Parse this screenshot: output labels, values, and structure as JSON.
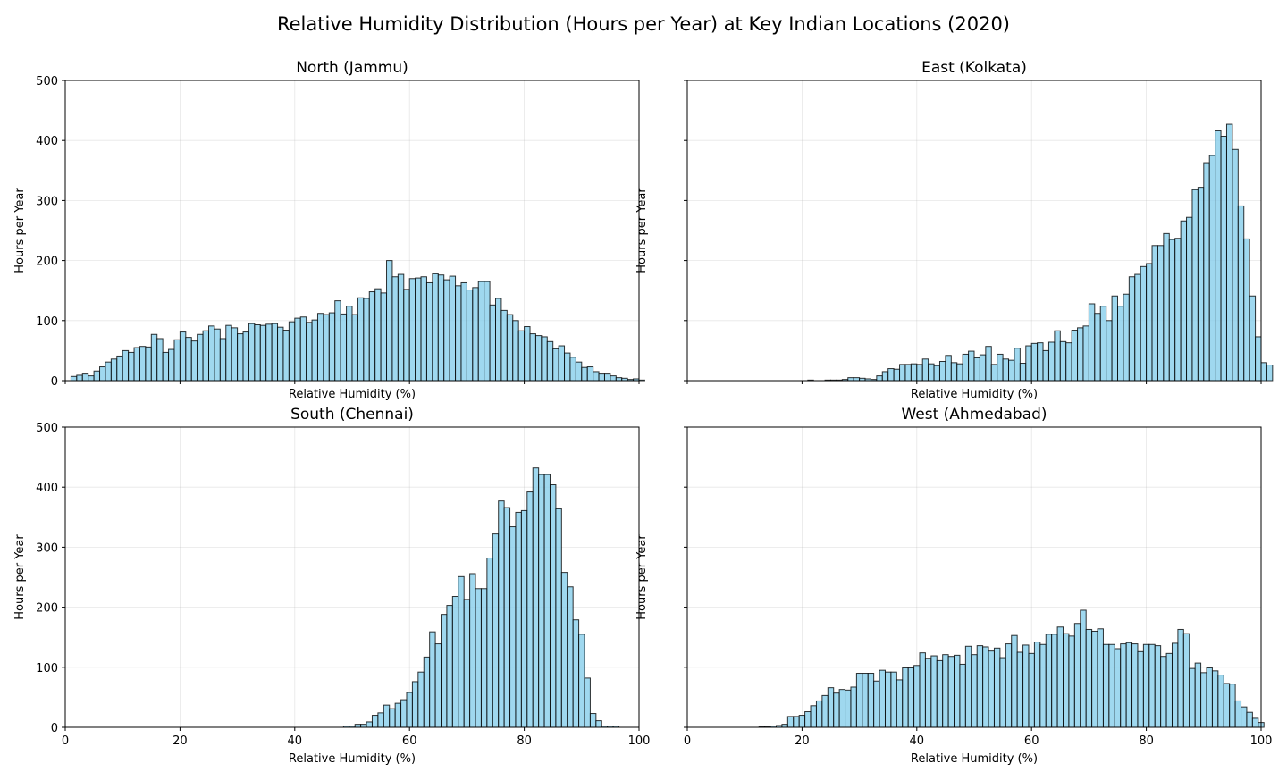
{
  "title": "Relative Humidity Distribution (Hours per Year) at Key Indian Locations (2020)",
  "chart_data": [
    {
      "type": "bar",
      "title": "North (Jammu)",
      "xlabel": "Relative Humidity (%)",
      "ylabel": "Hours per Year",
      "xlim": [
        0,
        100
      ],
      "ylim": [
        0,
        500
      ],
      "xticks": [
        "0",
        "20",
        "40",
        "60",
        "80",
        "100"
      ],
      "yticks": [
        "0",
        "100",
        "200",
        "300",
        "400",
        "500"
      ],
      "show_xticklabels": false,
      "show_yticklabels": true,
      "grid": true,
      "bin_width": 1,
      "x_start": 1,
      "values": [
        7,
        9,
        11,
        8,
        16,
        23,
        31,
        36,
        41,
        50,
        47,
        55,
        57,
        56,
        77,
        70,
        47,
        52,
        68,
        81,
        72,
        66,
        77,
        83,
        91,
        86,
        70,
        92,
        88,
        78,
        81,
        95,
        93,
        92,
        94,
        95,
        89,
        84,
        98,
        104,
        106,
        97,
        101,
        112,
        110,
        113,
        133,
        111,
        124,
        110,
        138,
        137,
        148,
        153,
        146,
        200,
        173,
        177,
        152,
        170,
        171,
        173,
        163,
        178,
        176,
        168,
        174,
        158,
        163,
        151,
        155,
        165,
        165,
        126,
        137,
        117,
        110,
        100,
        83,
        90,
        78,
        75,
        73,
        65,
        53,
        58,
        46,
        39,
        31,
        22,
        23,
        15,
        11,
        11,
        8,
        5,
        4,
        2,
        3,
        1
      ]
    },
    {
      "type": "bar",
      "title": "East (Kolkata)",
      "xlabel": "Relative Humidity (%)",
      "ylabel": "Hours per Year",
      "xlim": [
        0,
        100
      ],
      "ylim": [
        0,
        500
      ],
      "xticks": [
        "0",
        "20",
        "40",
        "60",
        "80",
        "100"
      ],
      "yticks": [
        "0",
        "100",
        "200",
        "300",
        "400",
        "500"
      ],
      "show_xticklabels": false,
      "show_yticklabels": false,
      "grid": true,
      "bin_width": 1,
      "x_start": 21,
      "values": [
        1,
        0,
        0,
        1,
        1,
        1,
        2,
        5,
        5,
        4,
        3,
        2,
        8,
        15,
        20,
        19,
        27,
        27,
        28,
        27,
        36,
        28,
        25,
        32,
        42,
        30,
        28,
        44,
        49,
        38,
        43,
        57,
        27,
        44,
        36,
        34,
        54,
        29,
        58,
        62,
        63,
        50,
        64,
        83,
        65,
        63,
        84,
        88,
        91,
        128,
        112,
        124,
        100,
        141,
        124,
        144,
        173,
        177,
        190,
        195,
        225,
        225,
        245,
        235,
        237,
        266,
        272,
        318,
        322,
        363,
        375,
        416,
        407,
        427,
        385,
        291,
        236,
        141,
        73,
        30,
        26
      ]
    },
    {
      "type": "bar",
      "title": "South (Chennai)",
      "xlabel": "Relative Humidity (%)",
      "ylabel": "Hours per Year",
      "xlim": [
        0,
        100
      ],
      "ylim": [
        0,
        500
      ],
      "xticks": [
        "0",
        "20",
        "40",
        "60",
        "80",
        "100"
      ],
      "yticks": [
        "0",
        "100",
        "200",
        "300",
        "400",
        "500"
      ],
      "show_xticklabels": true,
      "show_yticklabels": true,
      "grid": true,
      "bin_width": 1,
      "x_start": 48.5,
      "values": [
        2,
        2,
        5,
        5,
        9,
        20,
        24,
        37,
        31,
        40,
        46,
        58,
        76,
        92,
        117,
        159,
        139,
        188,
        203,
        218,
        251,
        213,
        256,
        231,
        231,
        282,
        322,
        377,
        366,
        334,
        358,
        361,
        392,
        432,
        421,
        421,
        404,
        364,
        258,
        234,
        179,
        155,
        82,
        23,
        11,
        2,
        2,
        2
      ]
    },
    {
      "type": "bar",
      "title": "West (Ahmedabad)",
      "xlabel": "Relative Humidity (%)",
      "ylabel": "Hours per Year",
      "xlim": [
        0,
        100
      ],
      "ylim": [
        0,
        500
      ],
      "xticks": [
        "0",
        "20",
        "40",
        "60",
        "80",
        "100"
      ],
      "yticks": [
        "0",
        "100",
        "200",
        "300",
        "400",
        "500"
      ],
      "show_xticklabels": true,
      "show_yticklabels": false,
      "grid": true,
      "bin_width": 1,
      "x_start": 12.5,
      "values": [
        1,
        1,
        2,
        3,
        5,
        18,
        18,
        20,
        26,
        36,
        44,
        53,
        66,
        57,
        63,
        62,
        67,
        90,
        90,
        90,
        77,
        95,
        92,
        92,
        79,
        99,
        99,
        103,
        124,
        115,
        119,
        111,
        121,
        118,
        120,
        105,
        135,
        121,
        136,
        134,
        127,
        132,
        116,
        139,
        153,
        125,
        137,
        123,
        142,
        138,
        155,
        155,
        167,
        156,
        152,
        173,
        195,
        163,
        160,
        164,
        138,
        138,
        131,
        139,
        141,
        139,
        126,
        138,
        138,
        136,
        118,
        123,
        140,
        163,
        156,
        98,
        107,
        91,
        99,
        94,
        87,
        73,
        72,
        44,
        34,
        25,
        15,
        8
      ]
    }
  ]
}
